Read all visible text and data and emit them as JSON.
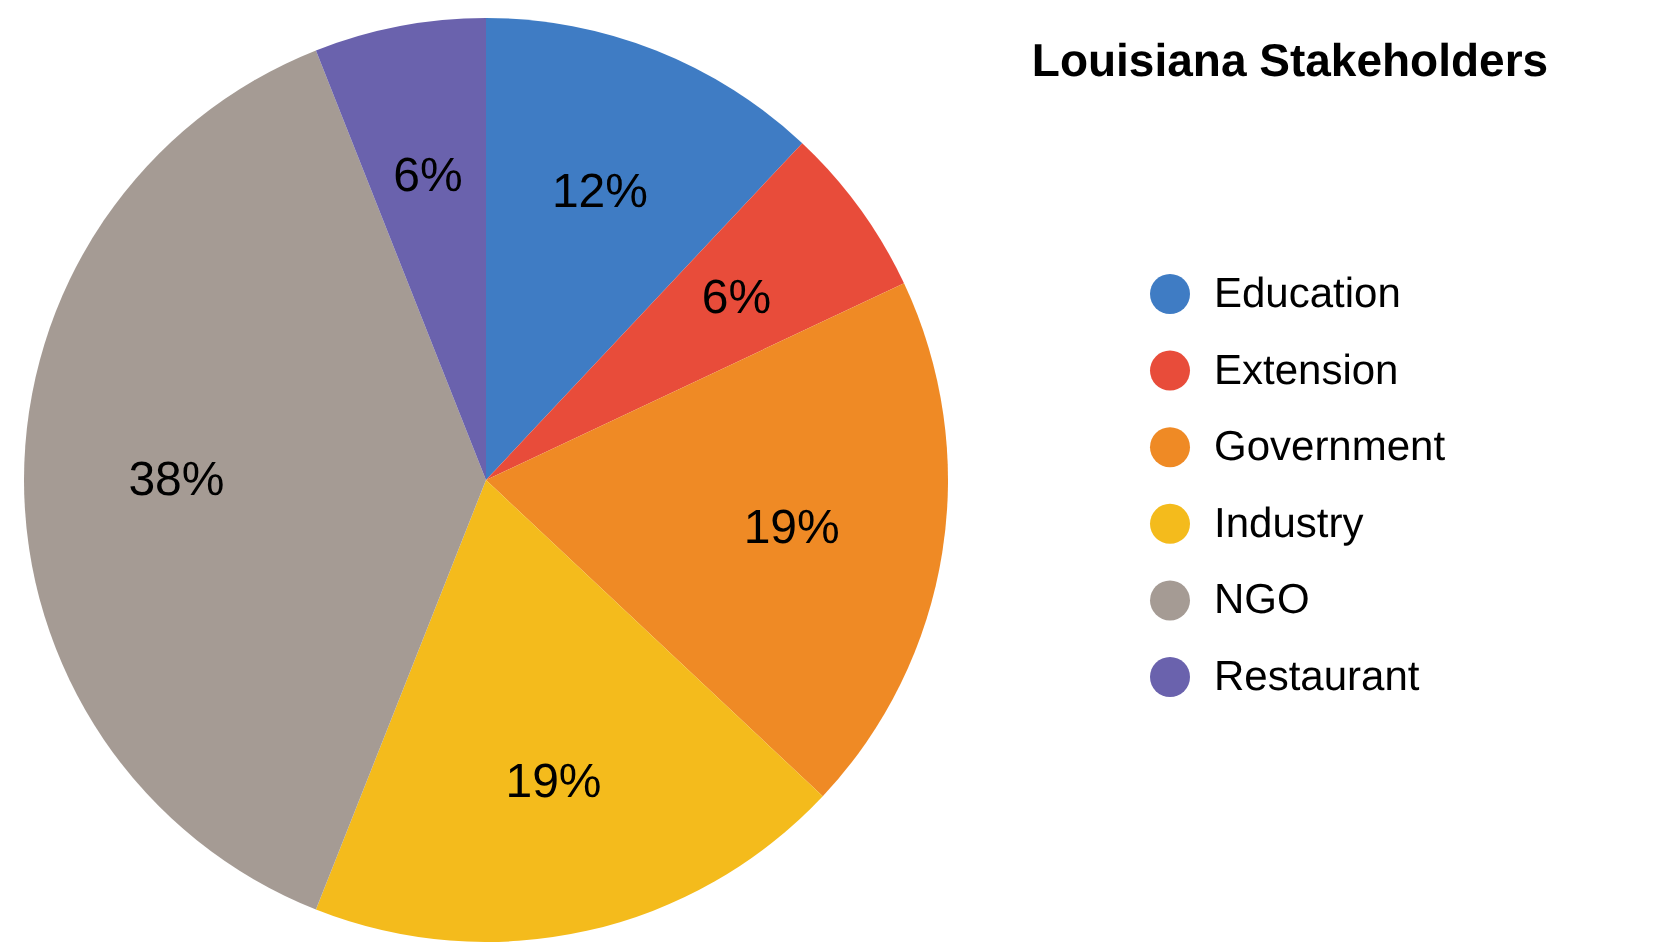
{
  "chart_data": {
    "type": "pie",
    "title": "Louisiana Stakeholders",
    "categories": [
      "Education",
      "Extension",
      "Government",
      "Industry",
      "NGO",
      "Restaurant"
    ],
    "values": [
      12,
      6,
      19,
      19,
      38,
      6
    ],
    "colors": [
      "#3f7cc4",
      "#e84c3a",
      "#ef8a25",
      "#f4bb1c",
      "#a59b94",
      "#6a62ad"
    ],
    "value_labels": [
      "12%",
      "6%",
      "19%",
      "19%",
      "38%",
      "6%"
    ],
    "legend": "right"
  }
}
